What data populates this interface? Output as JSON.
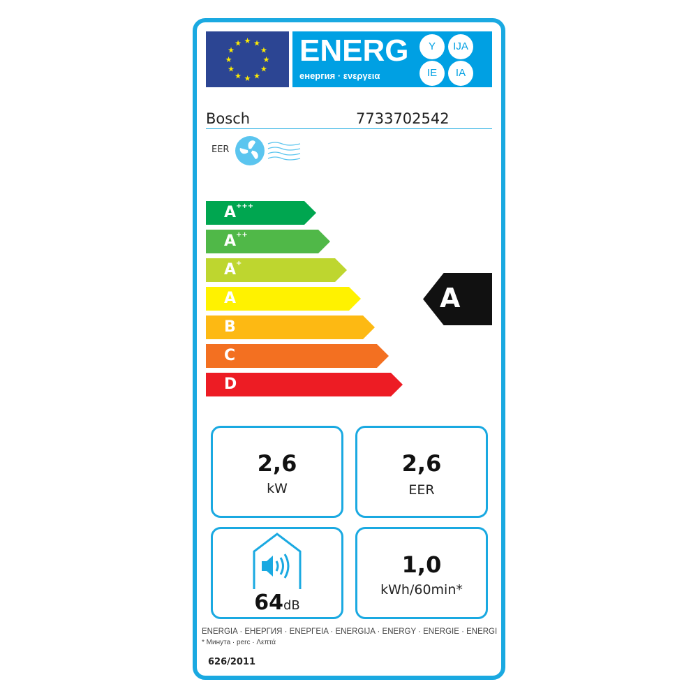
{
  "header": {
    "energy_title": "ENERG",
    "energy_subtitle": "енергия · ενεργεια",
    "suffixes": [
      "Y",
      "IJA",
      "IE",
      "IA"
    ]
  },
  "supplier": {
    "brand": "Bosch",
    "model": "7733702542"
  },
  "mode_label": "EER",
  "scale": [
    {
      "label": "A",
      "sup": "+++",
      "color": "#00a650"
    },
    {
      "label": "A",
      "sup": "++",
      "color": "#50b848"
    },
    {
      "label": "A",
      "sup": "+",
      "color": "#bed62f"
    },
    {
      "label": "A",
      "sup": "",
      "color": "#fff200"
    },
    {
      "label": "B",
      "sup": "",
      "color": "#fdb913"
    },
    {
      "label": "C",
      "sup": "",
      "color": "#f37021"
    },
    {
      "label": "D",
      "sup": "",
      "color": "#ed1c24"
    }
  ],
  "rating": "A",
  "boxes": {
    "capacity": {
      "value": "2,6",
      "unit": "kW"
    },
    "eer": {
      "value": "2,6",
      "unit": "EER"
    },
    "noise": {
      "value": "64",
      "unit": "dB"
    },
    "consumption": {
      "value": "1,0",
      "unit": "kWh/60min*"
    }
  },
  "footer": {
    "languages": "ENERGIA · ЕНЕРГИЯ · ΕΝΕΡΓΕΙΑ · ENERGIJA · ENERGY · ENERGIE · ENERGI",
    "minute_note": "* Минута · perc · Λεπτά",
    "regulation": "626/2011"
  },
  "colors": {
    "frame": "#1aa9e1",
    "eu_blue": "#2c4593",
    "energy_blue": "#00a0e3"
  }
}
